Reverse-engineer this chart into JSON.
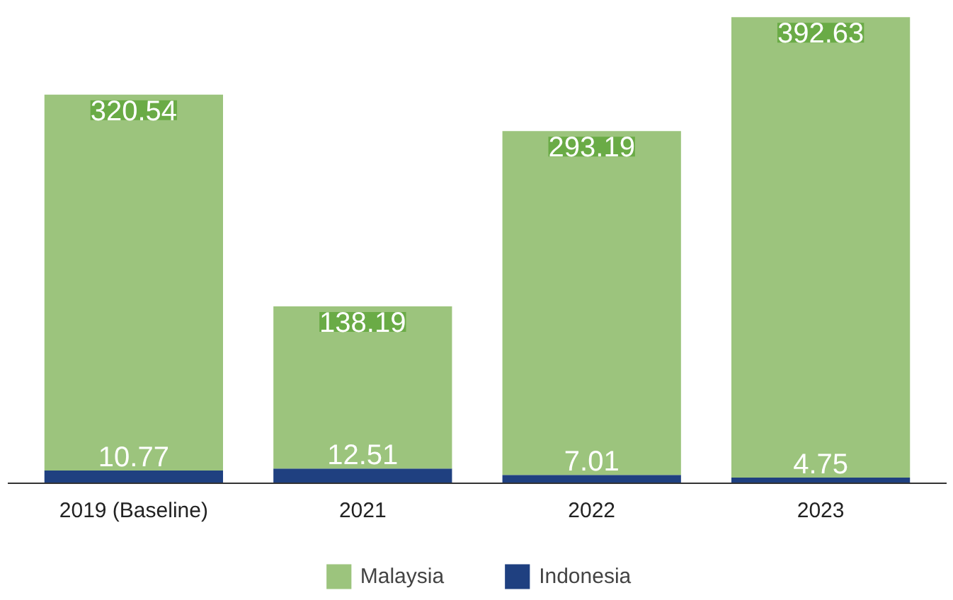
{
  "chart_data": {
    "type": "bar",
    "stacked": true,
    "categories": [
      "2019 (Baseline)",
      "2021",
      "2022",
      "2023"
    ],
    "series": [
      {
        "name": "Indonesia",
        "color": "#1f4080",
        "values": [
          10.77,
          12.51,
          7.01,
          4.75
        ]
      },
      {
        "name": "Malaysia",
        "color": "#9cc47d",
        "values": [
          320.54,
          138.19,
          293.19,
          392.63
        ]
      }
    ],
    "data_labels": true,
    "legend": "bottom",
    "grid": false
  }
}
